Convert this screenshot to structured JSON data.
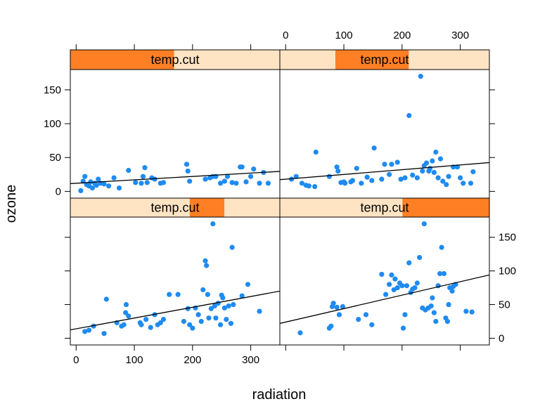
{
  "chart_data": {
    "type": "scatter",
    "xlabel": "radiation",
    "ylabel": "ozone",
    "xlim": [
      -10,
      350
    ],
    "ylim": [
      -10,
      180
    ],
    "x_ticks": [
      0,
      100,
      200,
      300
    ],
    "y_ticks": [
      0,
      50,
      100,
      150
    ],
    "strip_label": "temp.cut",
    "colors": {
      "point": "#1F8BF0",
      "strip_bg": "#FFE4C4",
      "strip_fill": "#FF7F24",
      "line": "#000000"
    },
    "panels": [
      {
        "id": "bottom-left",
        "strip_range": [
          0.57,
          0.735
        ],
        "fit": {
          "intercept": 14,
          "slope": 0.16
        },
        "points": [
          [
            15,
            10
          ],
          [
            22,
            12
          ],
          [
            30,
            18
          ],
          [
            48,
            7
          ],
          [
            52,
            58
          ],
          [
            70,
            23
          ],
          [
            78,
            18
          ],
          [
            82,
            20
          ],
          [
            85,
            38
          ],
          [
            86,
            50
          ],
          [
            90,
            33
          ],
          [
            110,
            23
          ],
          [
            112,
            20
          ],
          [
            120,
            28
          ],
          [
            128,
            16
          ],
          [
            135,
            35
          ],
          [
            140,
            20
          ],
          [
            145,
            23
          ],
          [
            150,
            28
          ],
          [
            160,
            65
          ],
          [
            175,
            65
          ],
          [
            185,
            25
          ],
          [
            192,
            44
          ],
          [
            195,
            20
          ],
          [
            200,
            15
          ],
          [
            205,
            45
          ],
          [
            210,
            35
          ],
          [
            215,
            25
          ],
          [
            218,
            72
          ],
          [
            222,
            115
          ],
          [
            224,
            108
          ],
          [
            226,
            65
          ],
          [
            228,
            30
          ],
          [
            232,
            44
          ],
          [
            235,
            170
          ],
          [
            238,
            48
          ],
          [
            240,
            30
          ],
          [
            244,
            52
          ],
          [
            248,
            20
          ],
          [
            250,
            64
          ],
          [
            252,
            60
          ],
          [
            255,
            45
          ],
          [
            258,
            28
          ],
          [
            262,
            48
          ],
          [
            266,
            22
          ],
          [
            268,
            135
          ],
          [
            270,
            50
          ],
          [
            285,
            63
          ],
          [
            295,
            80
          ],
          [
            315,
            40
          ]
        ]
      },
      {
        "id": "bottom-right",
        "strip_range": [
          0.585,
          1.0
        ],
        "fit": {
          "intercept": 24,
          "slope": 0.2
        },
        "points": [
          [
            25,
            8
          ],
          [
            75,
            15
          ],
          [
            78,
            18
          ],
          [
            80,
            47
          ],
          [
            82,
            52
          ],
          [
            88,
            46
          ],
          [
            92,
            35
          ],
          [
            98,
            47
          ],
          [
            125,
            28
          ],
          [
            138,
            35
          ],
          [
            148,
            20
          ],
          [
            165,
            95
          ],
          [
            172,
            65
          ],
          [
            178,
            80
          ],
          [
            182,
            94
          ],
          [
            186,
            72
          ],
          [
            188,
            88
          ],
          [
            192,
            75
          ],
          [
            196,
            82
          ],
          [
            200,
            78
          ],
          [
            202,
            15
          ],
          [
            205,
            35
          ],
          [
            208,
            78
          ],
          [
            212,
            112
          ],
          [
            215,
            68
          ],
          [
            218,
            73
          ],
          [
            222,
            75
          ],
          [
            226,
            82
          ],
          [
            230,
            120
          ],
          [
            235,
            45
          ],
          [
            238,
            170
          ],
          [
            240,
            42
          ],
          [
            245,
            45
          ],
          [
            250,
            48
          ],
          [
            252,
            60
          ],
          [
            255,
            38
          ],
          [
            258,
            25
          ],
          [
            262,
            78
          ],
          [
            265,
            96
          ],
          [
            268,
            135
          ],
          [
            272,
            96
          ],
          [
            275,
            30
          ],
          [
            278,
            25
          ],
          [
            280,
            50
          ],
          [
            282,
            75
          ],
          [
            286,
            70
          ],
          [
            288,
            77
          ],
          [
            292,
            80
          ],
          [
            310,
            40
          ],
          [
            320,
            39
          ]
        ]
      },
      {
        "id": "top-left",
        "strip_range": [
          0.0,
          0.495
        ],
        "fit": {
          "intercept": 12,
          "slope": 0.05
        },
        "points": [
          [
            8,
            1
          ],
          [
            12,
            15
          ],
          [
            15,
            22
          ],
          [
            18,
            10
          ],
          [
            22,
            8
          ],
          [
            25,
            14
          ],
          [
            28,
            5
          ],
          [
            32,
            12
          ],
          [
            35,
            9
          ],
          [
            38,
            18
          ],
          [
            42,
            12
          ],
          [
            48,
            11
          ],
          [
            56,
            8
          ],
          [
            65,
            20
          ],
          [
            74,
            5
          ],
          [
            90,
            31
          ],
          [
            102,
            13
          ],
          [
            112,
            12
          ],
          [
            115,
            22
          ],
          [
            118,
            35
          ],
          [
            122,
            13
          ],
          [
            130,
            20
          ],
          [
            135,
            18
          ],
          [
            145,
            12
          ],
          [
            150,
            13
          ],
          [
            190,
            40
          ],
          [
            192,
            30
          ],
          [
            195,
            15
          ],
          [
            222,
            18
          ],
          [
            230,
            20
          ],
          [
            235,
            22
          ],
          [
            240,
            22
          ],
          [
            248,
            12
          ],
          [
            255,
            15
          ],
          [
            260,
            22
          ],
          [
            268,
            13
          ],
          [
            275,
            12
          ],
          [
            282,
            36
          ],
          [
            285,
            36
          ],
          [
            292,
            14
          ],
          [
            300,
            22
          ],
          [
            305,
            33
          ],
          [
            315,
            12
          ],
          [
            322,
            28
          ],
          [
            330,
            12
          ]
        ]
      },
      {
        "id": "top-right",
        "strip_range": [
          0.265,
          0.615
        ],
        "fit": {
          "intercept": 18,
          "slope": 0.07
        },
        "points": [
          [
            10,
            18
          ],
          [
            18,
            22
          ],
          [
            28,
            12
          ],
          [
            35,
            9
          ],
          [
            40,
            8
          ],
          [
            50,
            7
          ],
          [
            52,
            58
          ],
          [
            75,
            22
          ],
          [
            88,
            36
          ],
          [
            90,
            30
          ],
          [
            95,
            13
          ],
          [
            100,
            14
          ],
          [
            102,
            12
          ],
          [
            112,
            14
          ],
          [
            115,
            16
          ],
          [
            122,
            34
          ],
          [
            130,
            12
          ],
          [
            140,
            21
          ],
          [
            148,
            16
          ],
          [
            152,
            64
          ],
          [
            165,
            18
          ],
          [
            170,
            40
          ],
          [
            178,
            25
          ],
          [
            182,
            40
          ],
          [
            192,
            43
          ],
          [
            198,
            18
          ],
          [
            205,
            20
          ],
          [
            212,
            112
          ],
          [
            218,
            24
          ],
          [
            226,
            20
          ],
          [
            232,
            170
          ],
          [
            235,
            30
          ],
          [
            238,
            38
          ],
          [
            242,
            42
          ],
          [
            246,
            30
          ],
          [
            248,
            34
          ],
          [
            252,
            45
          ],
          [
            255,
            28
          ],
          [
            258,
            58
          ],
          [
            262,
            20
          ],
          [
            266,
            48
          ],
          [
            270,
            15
          ],
          [
            276,
            10
          ],
          [
            280,
            22
          ],
          [
            288,
            36
          ],
          [
            295,
            36
          ],
          [
            300,
            20
          ],
          [
            305,
            12
          ],
          [
            318,
            12
          ],
          [
            322,
            29
          ]
        ]
      }
    ]
  }
}
